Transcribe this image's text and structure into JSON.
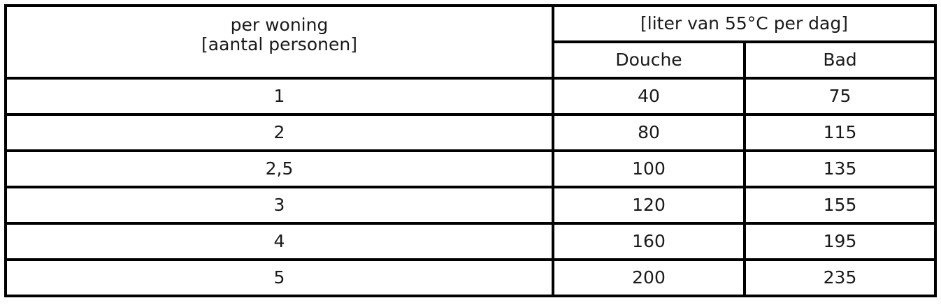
{
  "header": {
    "col1_line1": "per woning",
    "col1_line2": "[aantal personen]",
    "group": "[liter van 55°C per dag]",
    "douche": "Douche",
    "bad": "Bad"
  },
  "rows": [
    {
      "personen": "1",
      "douche": "40",
      "bad": "75"
    },
    {
      "personen": "2",
      "douche": "80",
      "bad": "115"
    },
    {
      "personen": "2,5",
      "douche": "100",
      "bad": "135"
    },
    {
      "personen": "3",
      "douche": "120",
      "bad": "155"
    },
    {
      "personen": "4",
      "douche": "160",
      "bad": "195"
    },
    {
      "personen": "5",
      "douche": "200",
      "bad": "235"
    }
  ]
}
